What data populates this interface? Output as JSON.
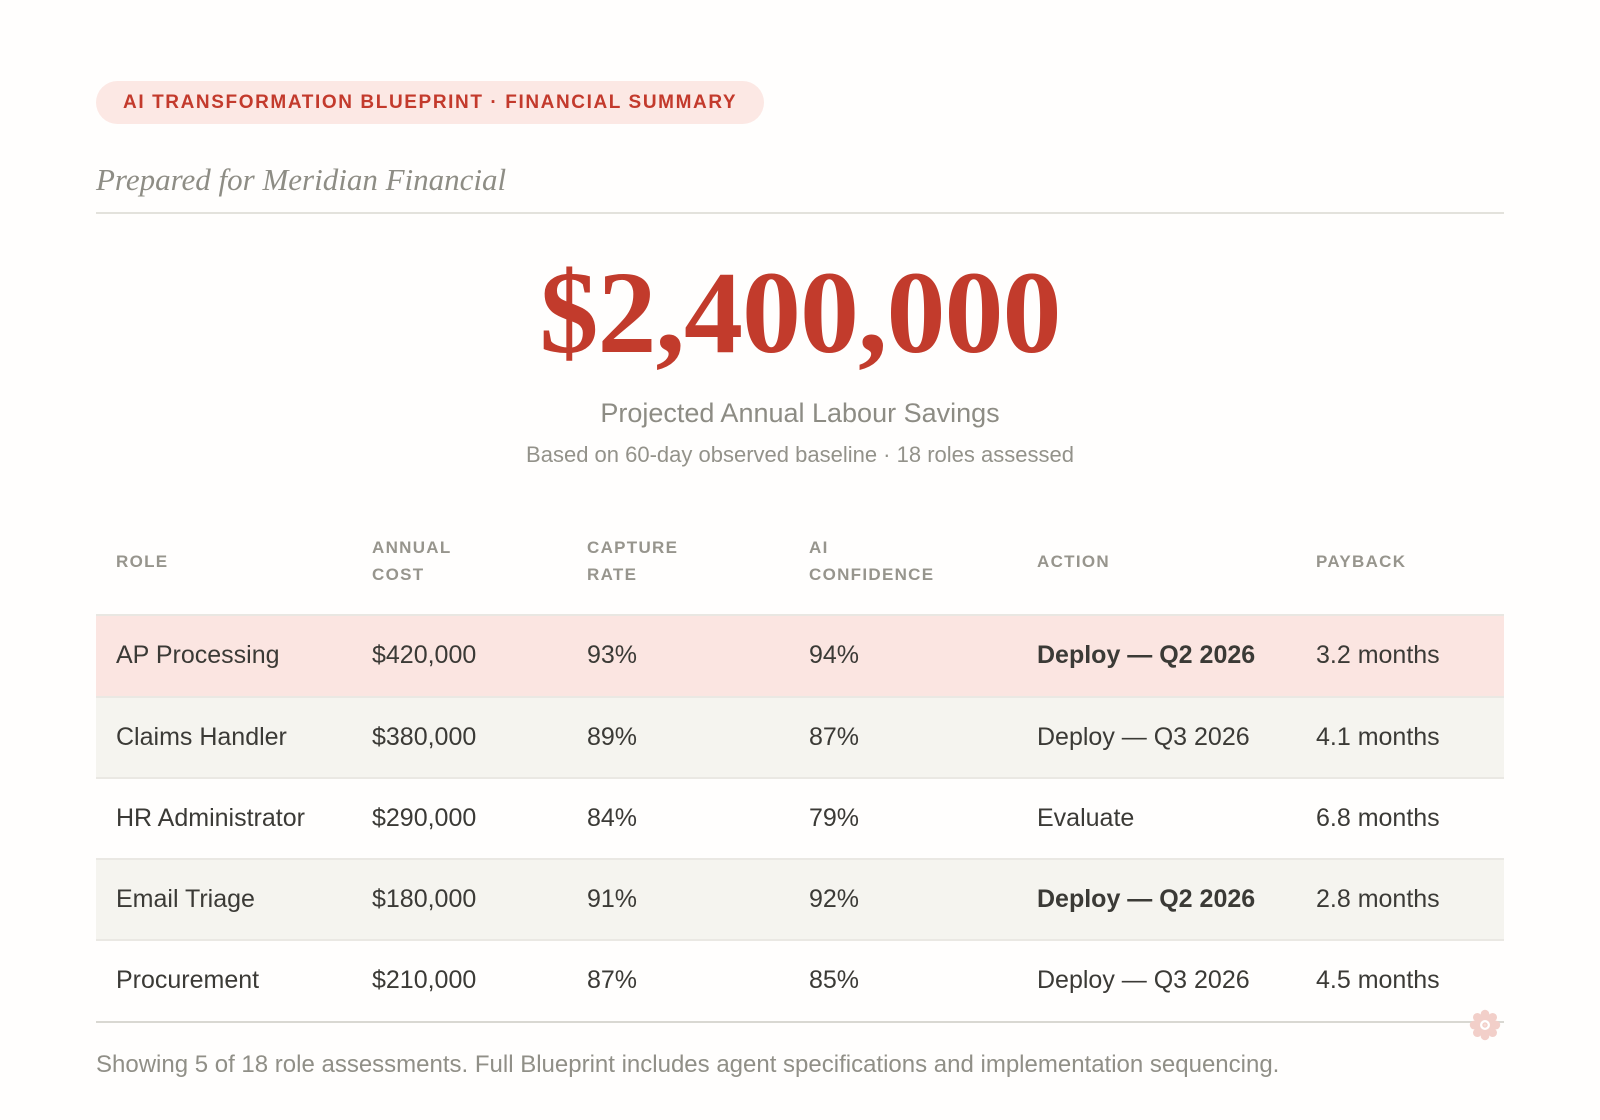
{
  "badge": {
    "label": "AI TRANSFORMATION BLUEPRINT · FINANCIAL SUMMARY"
  },
  "prepared_for": "Prepared for Meridian Financial",
  "headline": {
    "amount": "$2,400,000",
    "title": "Projected Annual Labour Savings",
    "subtitle": "Based on 60-day observed baseline · 18 roles assessed"
  },
  "table": {
    "columns": [
      {
        "key": "role",
        "label": "ROLE"
      },
      {
        "key": "annual_cost",
        "label": "ANNUAL COST"
      },
      {
        "key": "capture_rate",
        "label": "CAPTURE RATE"
      },
      {
        "key": "ai_confidence",
        "label": "AI CONFIDENCE"
      },
      {
        "key": "action",
        "label": "ACTION"
      },
      {
        "key": "payback",
        "label": "PAYBACK"
      }
    ],
    "rows": [
      {
        "role": "AP Processing",
        "annual_cost": "$420,000",
        "capture_rate": "93%",
        "ai_confidence": "94%",
        "action": "Deploy — Q2 2026",
        "payback": "3.2 months",
        "highlight": true,
        "action_emphasis": true
      },
      {
        "role": "Claims Handler",
        "annual_cost": "$380,000",
        "capture_rate": "89%",
        "ai_confidence": "87%",
        "action": "Deploy — Q3 2026",
        "payback": "4.1 months",
        "highlight": false,
        "action_emphasis": false
      },
      {
        "role": "HR Administrator",
        "annual_cost": "$290,000",
        "capture_rate": "84%",
        "ai_confidence": "79%",
        "action": "Evaluate",
        "payback": "6.8 months",
        "highlight": false,
        "action_emphasis": false
      },
      {
        "role": "Email Triage",
        "annual_cost": "$180,000",
        "capture_rate": "91%",
        "ai_confidence": "92%",
        "action": "Deploy — Q2 2026",
        "payback": "2.8 months",
        "highlight": false,
        "action_emphasis": true
      },
      {
        "role": "Procurement",
        "annual_cost": "$210,000",
        "capture_rate": "87%",
        "ai_confidence": "85%",
        "action": "Deploy — Q3 2026",
        "payback": "4.5 months",
        "highlight": false,
        "action_emphasis": false
      }
    ]
  },
  "footer": "Showing 5 of 18 role assessments. Full Blueprint includes agent specifications and implementation sequencing.",
  "icons": {
    "seal": "rosette-seal"
  },
  "colors": {
    "accent_red": "#c23b2c",
    "badge_bg": "#fce8e4",
    "highlight_row": "#fbe5e1",
    "stripe_row": "#f5f4ef",
    "muted_text": "#8e8d85",
    "header_text": "#97958d",
    "body_text": "#3b3a36",
    "seal_pink": "#f2cfc9"
  }
}
